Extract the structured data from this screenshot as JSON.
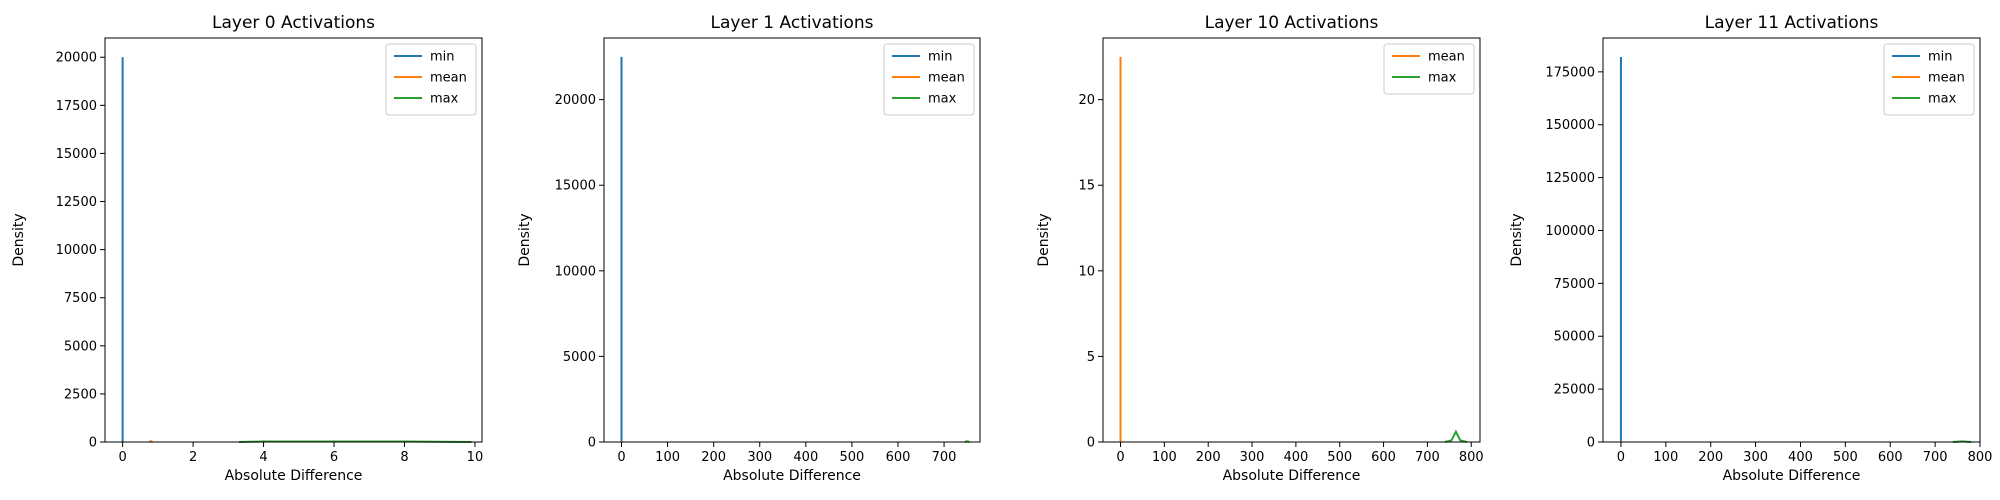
{
  "chart_data": [
    {
      "type": "line",
      "title": "Layer 0 Activations",
      "xlabel": "Absolute Difference",
      "ylabel": "Density",
      "xlim": [
        -0.5,
        10.2
      ],
      "ylim": [
        0,
        21000
      ],
      "xticks": [
        0,
        2,
        4,
        6,
        8,
        10
      ],
      "yticks": [
        0,
        2500,
        5000,
        7500,
        10000,
        12500,
        15000,
        17500,
        20000
      ],
      "legend": "top-right",
      "series": [
        {
          "name": "min",
          "color": "#1f77b4",
          "x": [
            0,
            0,
            0
          ],
          "y": [
            0,
            20000,
            0
          ]
        },
        {
          "name": "mean",
          "color": "#ff7f0e",
          "x": [
            0.75,
            0.8,
            0.85
          ],
          "y": [
            0,
            40,
            0
          ]
        },
        {
          "name": "max",
          "color": "#2ca02c",
          "x": [
            3.3,
            4,
            6,
            8,
            9.9
          ],
          "y": [
            0,
            25,
            25,
            25,
            0
          ]
        }
      ]
    },
    {
      "type": "line",
      "title": "Layer 1 Activations",
      "xlabel": "Absolute Difference",
      "ylabel": "Density",
      "xlim": [
        -38,
        778
      ],
      "ylim": [
        0,
        23600
      ],
      "xticks": [
        0,
        100,
        200,
        300,
        400,
        500,
        600,
        700
      ],
      "yticks": [
        0,
        5000,
        10000,
        15000,
        20000
      ],
      "legend": "top-right",
      "series": [
        {
          "name": "min",
          "color": "#1f77b4",
          "x": [
            0,
            0,
            0
          ],
          "y": [
            0,
            22500,
            0
          ]
        },
        {
          "name": "mean",
          "color": "#ff7f0e",
          "x": [
            0,
            1,
            2
          ],
          "y": [
            0,
            30,
            0
          ]
        },
        {
          "name": "max",
          "color": "#2ca02c",
          "x": [
            745,
            750,
            755
          ],
          "y": [
            0,
            40,
            0
          ]
        }
      ]
    },
    {
      "type": "line",
      "title": "Layer 10 Activations",
      "xlabel": "Absolute Difference",
      "ylabel": "Density",
      "xlim": [
        -40,
        820
      ],
      "ylim": [
        0,
        23.6
      ],
      "xticks": [
        0,
        100,
        200,
        300,
        400,
        500,
        600,
        700,
        800
      ],
      "yticks": [
        0,
        5,
        10,
        15,
        20
      ],
      "legend": "top-right",
      "series": [
        {
          "name": "mean",
          "color": "#ff7f0e",
          "x": [
            0,
            0,
            0
          ],
          "y": [
            0,
            22.5,
            0
          ]
        },
        {
          "name": "max",
          "color": "#2ca02c",
          "x": [
            740,
            755,
            765,
            775,
            790
          ],
          "y": [
            0,
            0.1,
            0.6,
            0.1,
            0
          ]
        }
      ]
    },
    {
      "type": "line",
      "title": "Layer 11 Activations",
      "xlabel": "Absolute Difference",
      "ylabel": "Density",
      "xlim": [
        -40,
        800
      ],
      "ylim": [
        0,
        191000
      ],
      "xticks": [
        0,
        100,
        200,
        300,
        400,
        500,
        600,
        700,
        800
      ],
      "yticks": [
        0,
        25000,
        50000,
        75000,
        100000,
        125000,
        150000,
        175000
      ],
      "legend": "top-right",
      "series": [
        {
          "name": "min",
          "color": "#1f77b4",
          "x": [
            0,
            0,
            0
          ],
          "y": [
            0,
            182000,
            0
          ]
        },
        {
          "name": "mean",
          "color": "#ff7f0e",
          "x": [
            0,
            1,
            2
          ],
          "y": [
            0,
            200,
            0
          ]
        },
        {
          "name": "max",
          "color": "#2ca02c",
          "x": [
            740,
            760,
            780
          ],
          "y": [
            0,
            300,
            0
          ]
        }
      ]
    }
  ]
}
